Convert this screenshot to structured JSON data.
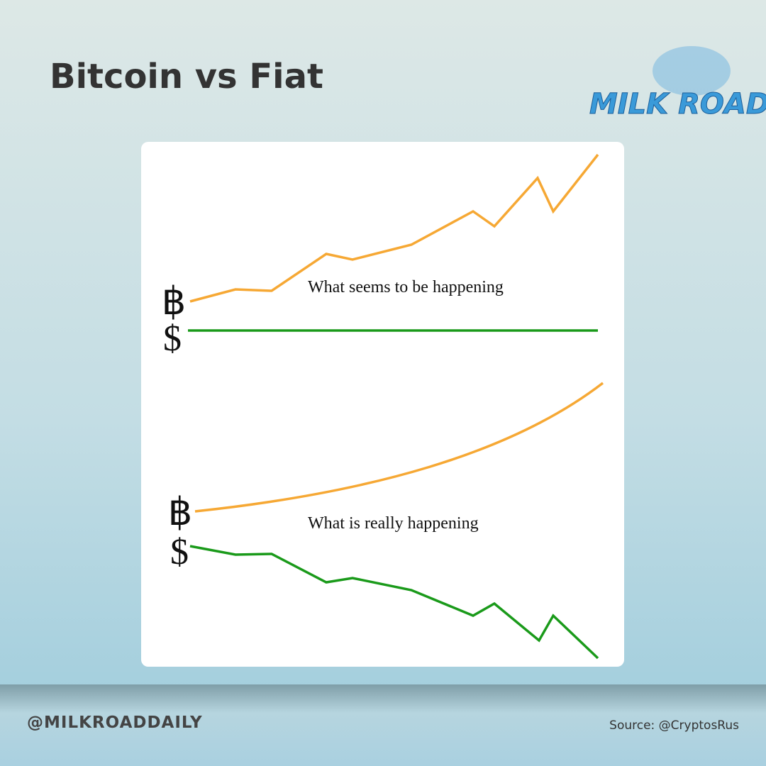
{
  "header": {
    "title": "Bitcoin vs Fiat",
    "logo": "MILK ROAD"
  },
  "panels": [
    {
      "caption": "What seems to be happening",
      "bitcoin_symbol": "฿",
      "dollar_symbol": "$"
    },
    {
      "caption": "What is really happening",
      "bitcoin_symbol": "฿",
      "dollar_symbol": "$"
    }
  ],
  "footer": {
    "handle": "@MILKROADDAILY",
    "source": "Source: @CryptosRus"
  }
}
